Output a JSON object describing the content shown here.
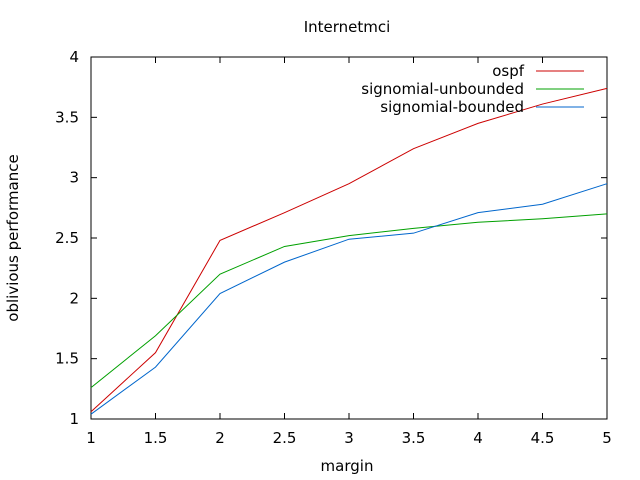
{
  "chart_data": {
    "type": "line",
    "title": "Internetmci",
    "xlabel": "margin",
    "ylabel": "oblivious performance",
    "xlim": [
      1,
      5
    ],
    "ylim": [
      1,
      4
    ],
    "xticks": [
      1,
      1.5,
      2,
      2.5,
      3,
      3.5,
      4,
      4.5,
      5
    ],
    "yticks": [
      1,
      1.5,
      2,
      2.5,
      3,
      3.5,
      4
    ],
    "xtick_labels": [
      "1",
      "1.5",
      "2",
      "2.5",
      "3",
      "3.5",
      "4",
      "4.5",
      "5"
    ],
    "ytick_labels": [
      "1",
      "1.5",
      "2",
      "2.5",
      "3",
      "3.5",
      "4"
    ],
    "grid": false,
    "legend_position": "top-right",
    "x": [
      1,
      1.5,
      2,
      2.5,
      3,
      3.5,
      4,
      4.5,
      5
    ],
    "series": [
      {
        "name": "ospf",
        "color": "#cc0000",
        "values": [
          1.06,
          1.55,
          2.48,
          2.71,
          2.95,
          3.24,
          3.45,
          3.61,
          3.74
        ]
      },
      {
        "name": "signomial-unbounded",
        "color": "#00a000",
        "values": [
          1.26,
          1.69,
          2.2,
          2.43,
          2.52,
          2.58,
          2.63,
          2.66,
          2.7
        ]
      },
      {
        "name": "signomial-bounded",
        "color": "#0066cc",
        "values": [
          1.04,
          1.43,
          2.04,
          2.3,
          2.49,
          2.54,
          2.71,
          2.78,
          2.95
        ]
      }
    ]
  }
}
